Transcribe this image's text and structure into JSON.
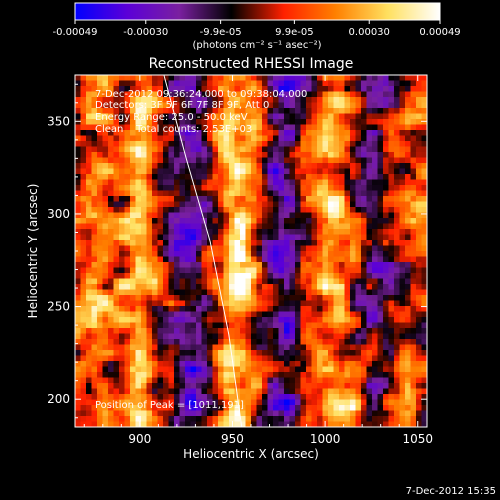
{
  "chart_data": {
    "type": "heatmap",
    "title": "Reconstructed RHESSI Image",
    "xlabel": "Heliocentric X (arcsec)",
    "ylabel": "Heliocentric Y (arcsec)",
    "xlim": [
      865,
      1055
    ],
    "ylim": [
      185,
      375
    ],
    "xticks": [
      900,
      950,
      1000,
      1050
    ],
    "yticks": [
      200,
      250,
      300,
      350
    ],
    "colorbar": {
      "label": "(photons cm⁻² s⁻¹ asec⁻²)",
      "range": [
        -0.00049,
        0.00049
      ],
      "ticks": [
        {
          "value": -0.00049,
          "label": "-0.00049"
        },
        {
          "value": -0.0003,
          "label": "-0.00030"
        },
        {
          "value": -9.9e-05,
          "label": "-9.9e-05"
        },
        {
          "value": 9.9e-05,
          "label": "9.9e-05"
        },
        {
          "value": 0.0003,
          "label": "0.00030"
        },
        {
          "value": 0.00049,
          "label": "0.00049"
        }
      ],
      "colormap": [
        "#0000ff",
        "#5b00d8",
        "#7a20a0",
        "#000000",
        "#ff2000",
        "#ff8000",
        "#ffe060",
        "#ffffff"
      ]
    },
    "annotations": [
      "7-Dec-2012 09:36:24.000 to 09:38:04.000",
      "Detectors: 3F 5F 6F 7F 8F 9F, Att 0",
      "Energy Range: 25.0 - 50.0 keV",
      "Clean    Total counts: 2.53E+03"
    ],
    "peak_label": "Position of Peak = [1011,191]",
    "peak_position": [
      1011,
      191
    ],
    "limb_curve": {
      "x": [
        913,
        925,
        938,
        948,
        955
      ],
      "y": [
        375,
        330,
        285,
        235,
        185
      ]
    },
    "pattern": {
      "columns": [
        {
          "x": 875,
          "amp": 0.35
        },
        {
          "x": 900,
          "amp": 0.55
        },
        {
          "x": 928,
          "amp": -0.55
        },
        {
          "x": 952,
          "amp": 0.75
        },
        {
          "x": 978,
          "amp": -0.55
        },
        {
          "x": 1003,
          "amp": 0.45
        },
        {
          "x": 1028,
          "amp": -0.25
        },
        {
          "x": 1048,
          "amp": 0.2
        }
      ],
      "hotspots": [
        {
          "x": 955,
          "y": 268,
          "amp": 0.6
        },
        {
          "x": 1011,
          "y": 191,
          "amp": 1.0
        },
        {
          "x": 885,
          "y": 250,
          "amp": 0.5
        },
        {
          "x": 905,
          "y": 340,
          "amp": 0.4
        },
        {
          "x": 1005,
          "y": 300,
          "amp": 0.4
        }
      ]
    }
  },
  "footer": {
    "timestamp": "7-Dec-2012 15:35"
  }
}
